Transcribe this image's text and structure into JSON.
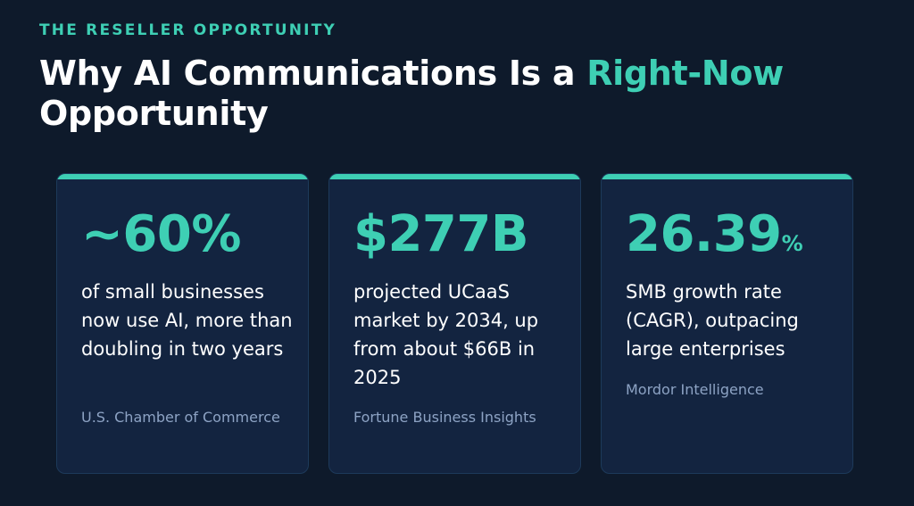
{
  "header": {
    "eyebrow": "THE RESELLER OPPORTUNITY",
    "title_main": "Why AI Communications Is a ",
    "title_accent": "Right-Now",
    "title_end": "Opportunity"
  },
  "colors": {
    "background": "#0e1a2b",
    "card_background": "#132440",
    "accent": "#3ecfb4",
    "source_text": "#8da3c4"
  },
  "stats": [
    {
      "value": "~60%",
      "unit": "",
      "description": "of small businesses now use AI, more than doubling in two years",
      "source": "U.S. Chamber of Commerce"
    },
    {
      "value": "$277B",
      "unit": "",
      "description": "projected UCaaS market by 2034, up from about $66B in 2025",
      "source": "Fortune Business Insights"
    },
    {
      "value": "26.39",
      "unit": "%",
      "description": "SMB growth rate (CAGR), outpacing large enterprises",
      "source": "Mordor Intelligence"
    }
  ]
}
